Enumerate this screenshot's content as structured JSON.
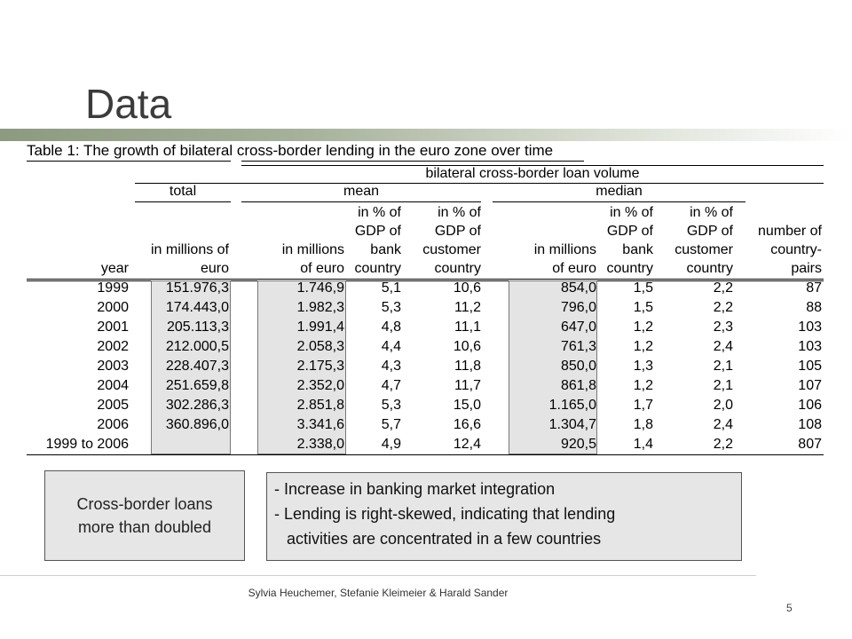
{
  "title": "Data",
  "table": {
    "caption": "Table 1: The growth of bilateral cross-border lending in the euro zone over time",
    "group_header": "bilateral cross-border loan volume",
    "section_total": "total",
    "section_mean": "mean",
    "section_median": "median",
    "col_year": "year",
    "col_total": [
      "in millions of",
      "euro"
    ],
    "col_mean_mil": [
      "in millions",
      "of euro"
    ],
    "col_mean_bank": [
      "in % of",
      "GDP of",
      "bank",
      "country"
    ],
    "col_mean_cust": [
      "in % of",
      "GDP of",
      "customer",
      "country"
    ],
    "col_med_mil": [
      "in millions",
      "of euro"
    ],
    "col_med_bank": [
      "in % of",
      "GDP of",
      "bank",
      "country"
    ],
    "col_med_cust": [
      "in % of",
      "GDP of",
      "customer",
      "country"
    ],
    "col_pairs": [
      "number of",
      "country-",
      "pairs"
    ],
    "rows": [
      [
        "1999",
        "151.976,3",
        "1.746,9",
        "5,1",
        "10,6",
        "854,0",
        "1,5",
        "2,2",
        "87"
      ],
      [
        "2000",
        "174.443,0",
        "1.982,3",
        "5,3",
        "11,2",
        "796,0",
        "1,5",
        "2,2",
        "88"
      ],
      [
        "2001",
        "205.113,3",
        "1.991,4",
        "4,8",
        "11,1",
        "647,0",
        "1,2",
        "2,3",
        "103"
      ],
      [
        "2002",
        "212.000,5",
        "2.058,3",
        "4,4",
        "10,6",
        "761,3",
        "1,2",
        "2,4",
        "103"
      ],
      [
        "2003",
        "228.407,3",
        "2.175,3",
        "4,3",
        "11,8",
        "850,0",
        "1,3",
        "2,1",
        "105"
      ],
      [
        "2004",
        "251.659,8",
        "2.352,0",
        "4,7",
        "11,7",
        "861,8",
        "1,2",
        "2,1",
        "107"
      ],
      [
        "2005",
        "302.286,3",
        "2.851,8",
        "5,3",
        "15,0",
        "1.165,0",
        "1,7",
        "2,0",
        "106"
      ],
      [
        "2006",
        "360.896,0",
        "3.341,6",
        "5,7",
        "16,6",
        "1.304,7",
        "1,8",
        "2,4",
        "108"
      ],
      [
        "1999 to 2006",
        "",
        "2.338,0",
        "4,9",
        "12,4",
        "920,5",
        "1,4",
        "2,2",
        "807"
      ]
    ]
  },
  "callout_left": [
    "Cross-border loans",
    "more than doubled"
  ],
  "callout_right": [
    "-  Increase in banking market integration",
    "-  Lending is right-skewed, indicating that lending",
    "activities are concentrated in a few countries"
  ],
  "footer": "Sylvia Heuchemer,  Stefanie Kleimeier & Harald Sander",
  "page_number": "5"
}
